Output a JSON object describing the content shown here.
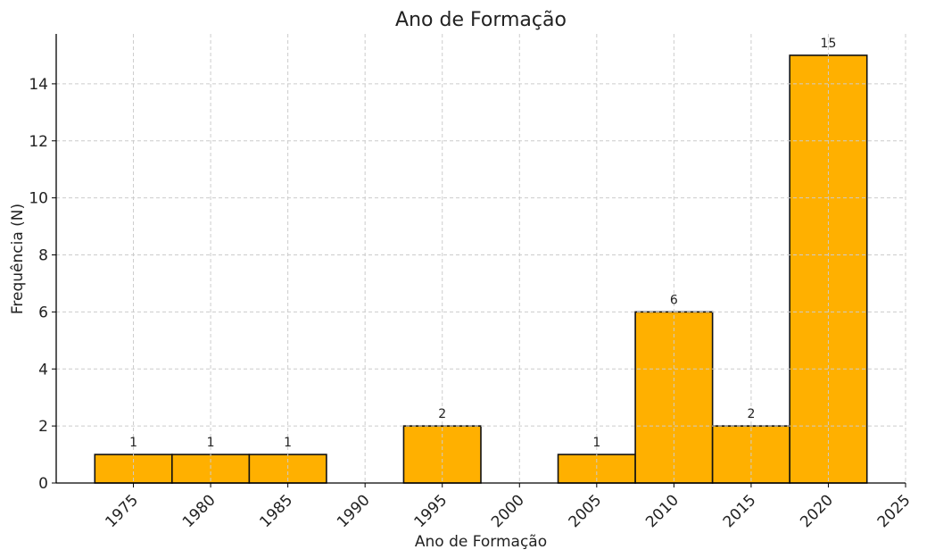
{
  "chart_data": {
    "type": "bar",
    "title": "Ano de Formação",
    "xlabel": "Ano de Formação",
    "ylabel": "Frequência (N)",
    "categories": [
      1975,
      1980,
      1985,
      1990,
      1995,
      2000,
      2005,
      2010,
      2015,
      2020
    ],
    "values": [
      1,
      1,
      1,
      0,
      2,
      0,
      1,
      6,
      2,
      15
    ],
    "bin_width": 5,
    "data_labels": [
      "1",
      "1",
      "1",
      "",
      "2",
      "",
      "1",
      "6",
      "2",
      "15"
    ],
    "xticks": [
      1975,
      1980,
      1985,
      1990,
      1995,
      2000,
      2005,
      2010,
      2015,
      2020,
      2025
    ],
    "yticks": [
      0,
      2,
      4,
      6,
      8,
      10,
      12,
      14
    ],
    "xlim": [
      1970,
      2025
    ],
    "ylim": [
      0,
      15.75
    ],
    "grid": true,
    "colors": {
      "bar": "#FFB000",
      "edge": "#111111",
      "grid": "#cccccc"
    }
  }
}
